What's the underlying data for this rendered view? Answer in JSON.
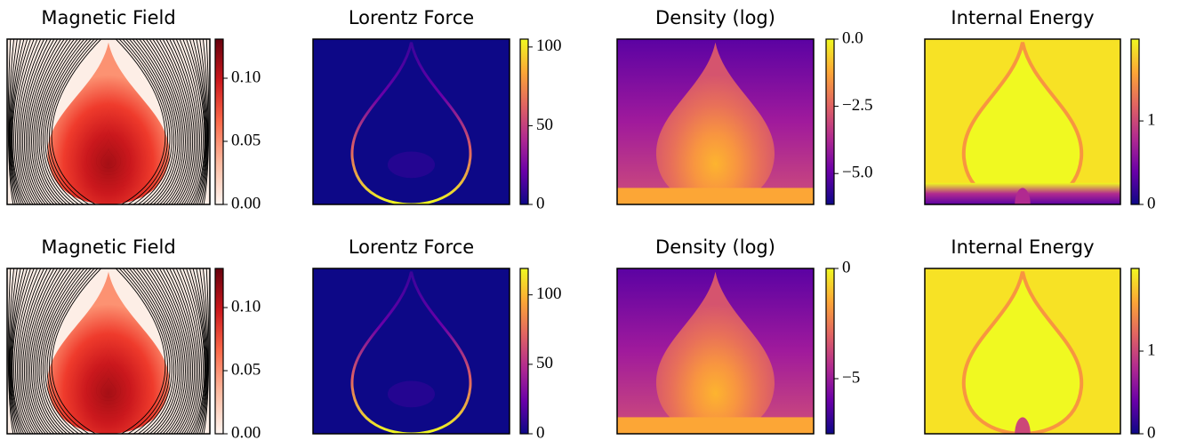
{
  "chart_data": [
    {
      "type": "heatmap",
      "title": "Magnetic Field",
      "colormap": "Reds",
      "clim": [
        0,
        0.131
      ],
      "cticks": [
        {
          "value": 0,
          "label": "0.00"
        },
        {
          "value": 0.05,
          "label": "0.05"
        },
        {
          "value": 0.1,
          "label": "0.10"
        }
      ]
    },
    {
      "type": "heatmap",
      "title": "Lorentz Force",
      "colormap": "plasma",
      "clim": [
        0,
        105
      ],
      "cticks": [
        0,
        50,
        100
      ]
    },
    {
      "type": "heatmap",
      "title": "Density (log)",
      "colormap": "plasma",
      "clim": [
        -6.15,
        0
      ],
      "cticks": [
        {
          "value": 0,
          "label": "0.0"
        },
        {
          "value": -2.5,
          "label": "−2.5"
        },
        {
          "value": -5,
          "label": "−5.0"
        }
      ]
    },
    {
      "type": "heatmap",
      "title": "Internal Energy",
      "colormap": "plasma",
      "clim": [
        0,
        1.98
      ],
      "cticks": [
        0,
        1
      ]
    },
    {
      "type": "heatmap",
      "title": "Magnetic Field",
      "colormap": "Reds",
      "clim": [
        0,
        0.131
      ],
      "cticks": [
        {
          "value": 0,
          "label": "0.00"
        },
        {
          "value": 0.05,
          "label": "0.05"
        },
        {
          "value": 0.1,
          "label": "0.10"
        }
      ]
    },
    {
      "type": "heatmap",
      "title": "Lorentz Force",
      "colormap": "plasma",
      "clim": [
        0,
        119
      ],
      "cticks": [
        0,
        50,
        100
      ]
    },
    {
      "type": "heatmap",
      "title": "Density (log)",
      "colormap": "plasma",
      "clim": [
        -7.5,
        0
      ],
      "cticks": [
        0,
        {
          "value": -5,
          "label": "−5"
        }
      ]
    },
    {
      "type": "heatmap",
      "title": "Internal Energy",
      "colormap": "plasma",
      "clim": [
        0,
        2.0
      ],
      "cticks": [
        0,
        1
      ]
    }
  ]
}
